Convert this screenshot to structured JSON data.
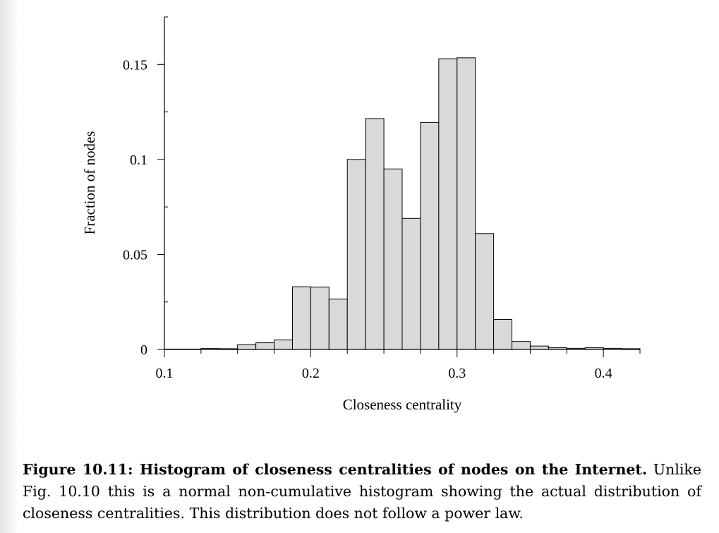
{
  "chart_data": {
    "type": "bar",
    "xlabel": "Closeness centrality",
    "ylabel": "Fraction of nodes",
    "xlim": [
      0.1,
      0.425
    ],
    "ylim": [
      0,
      0.175
    ],
    "x_ticks": [
      "0.1",
      "0.2",
      "0.3",
      "0.4"
    ],
    "y_ticks": [
      "0",
      "0.05",
      "0.1",
      "0.15"
    ],
    "bin_width": 0.0125,
    "bin_edges_start": 0.1,
    "values": [
      0.0002,
      0.0002,
      0.0005,
      0.0004,
      0.0025,
      0.0035,
      0.005,
      0.033,
      0.0328,
      0.0265,
      0.1,
      0.1215,
      0.095,
      0.069,
      0.1195,
      0.153,
      0.1535,
      0.061,
      0.0158,
      0.0042,
      0.0018,
      0.0009,
      0.0006,
      0.0009,
      0.0006,
      0.0004
    ],
    "bar_color": "#d9d9d9",
    "edge_color": "#000000",
    "grid": false
  },
  "caption": {
    "label": "Figure 10.11: Histogram of closeness centralities of nodes on the Internet.",
    "text": "Unlike Fig. 10.10 this is a normal non-cumulative histogram showing the actual distribution of closeness centralities. This distribution does not follow a power law."
  }
}
